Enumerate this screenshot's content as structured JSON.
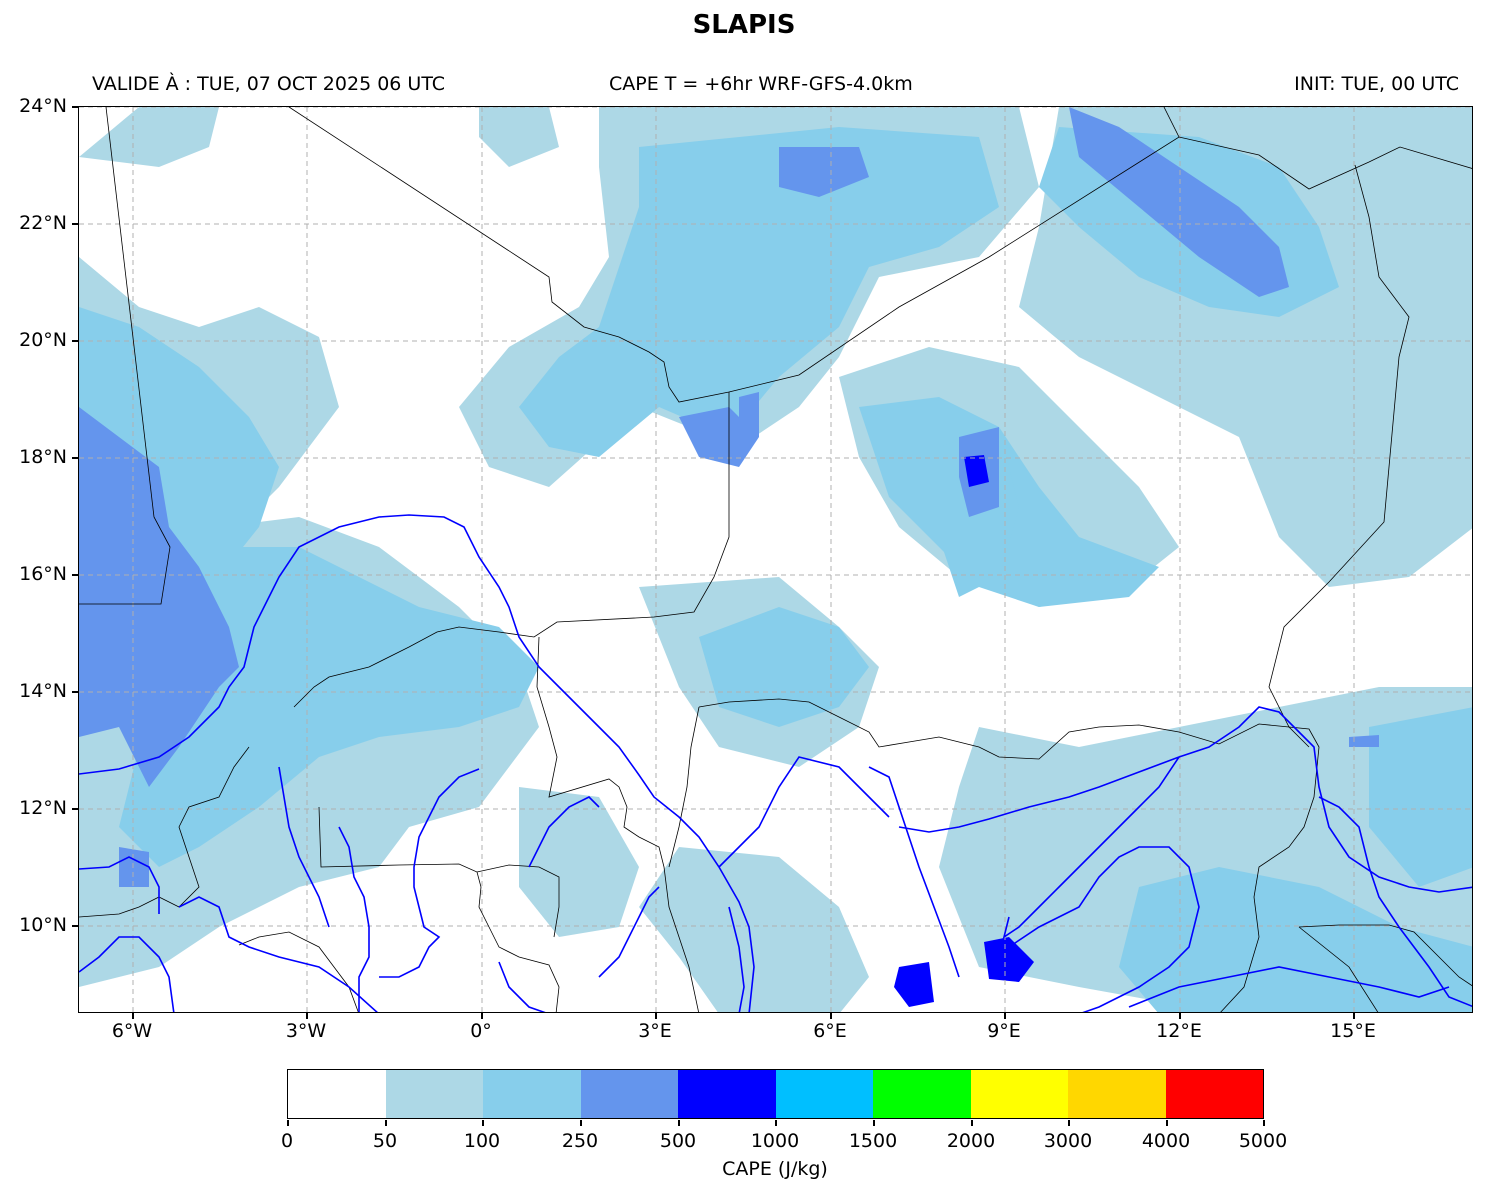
{
  "title": "SLAPIS",
  "header": {
    "valid": "VALIDE À : TUE, 07 OCT 2025 06 UTC",
    "product": "CAPE T = +6hr WRF-GFS-4.0km",
    "init": "INIT: TUE, 00 UTC"
  },
  "map": {
    "lon_range": [
      -7,
      17
    ],
    "lat_range": [
      8.5,
      24
    ],
    "gridlines": true,
    "lat_labels": [
      "24°N",
      "22°N",
      "20°N",
      "18°N",
      "16°N",
      "14°N",
      "12°N",
      "10°N"
    ],
    "lon_labels": [
      "6°W",
      "3°W",
      "0°",
      "3°E",
      "6°E",
      "9°E",
      "12°E",
      "15°E"
    ],
    "boundary_color": "#000000",
    "river_color": "#0000ff"
  },
  "colorbar": {
    "label": "CAPE (J/kg)",
    "ticks": [
      "0",
      "50",
      "100",
      "250",
      "500",
      "1000",
      "1500",
      "2000",
      "3000",
      "4000",
      "5000"
    ],
    "colors": [
      "#ffffff",
      "#add8e6",
      "#87ceeb",
      "#6495ed",
      "#0000ff",
      "#00bfff",
      "#00ff00",
      "#ffff00",
      "#ffd700",
      "#ff0000"
    ]
  }
}
